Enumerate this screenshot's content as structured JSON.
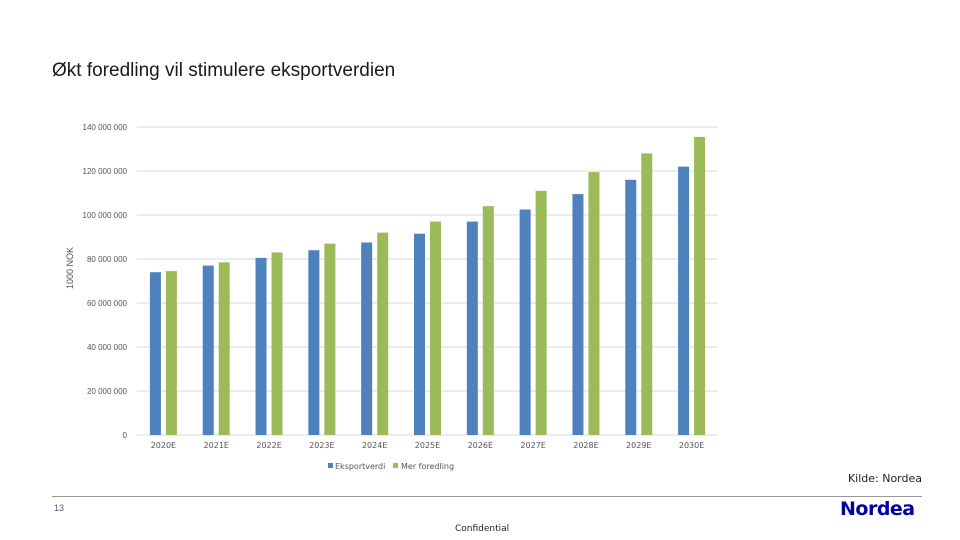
{
  "slide": {
    "title": "Økt foredling vil stimulere eksportverdien",
    "source": "Kilde: Nordea",
    "page_number": "13",
    "confidential": "Confidential",
    "logo": "Nordea"
  },
  "colors": {
    "series1": "#4f81bd",
    "series2": "#9bbb59",
    "grid": "#d9d9d9",
    "logo": "#0000a0"
  },
  "chart_data": {
    "type": "bar",
    "title": "",
    "ylabel": "1000 NOK",
    "xlabel": "",
    "ylim": [
      0,
      140000000
    ],
    "yticks": [
      0,
      20000000,
      40000000,
      60000000,
      80000000,
      100000000,
      120000000,
      140000000
    ],
    "ytick_labels": [
      "0",
      "20 000 000",
      "40 000 000",
      "60 000 000",
      "80 000 000",
      "100 000 000",
      "120 000 000",
      "140 000 000"
    ],
    "categories": [
      "2020E",
      "2021E",
      "2022E",
      "2023E",
      "2024E",
      "2025E",
      "2026E",
      "2027E",
      "2028E",
      "2029E",
      "2030E"
    ],
    "series": [
      {
        "name": "Eksportverdi",
        "values": [
          74000000,
          77000000,
          80500000,
          84000000,
          87500000,
          91500000,
          97000000,
          102500000,
          109500000,
          116000000,
          122000000
        ]
      },
      {
        "name": "Mer foredling",
        "values": [
          74500000,
          78500000,
          83000000,
          87000000,
          92000000,
          97000000,
          104000000,
          111000000,
          119500000,
          128000000,
          135500000
        ]
      }
    ],
    "grid": true,
    "legend_position": "bottom"
  }
}
